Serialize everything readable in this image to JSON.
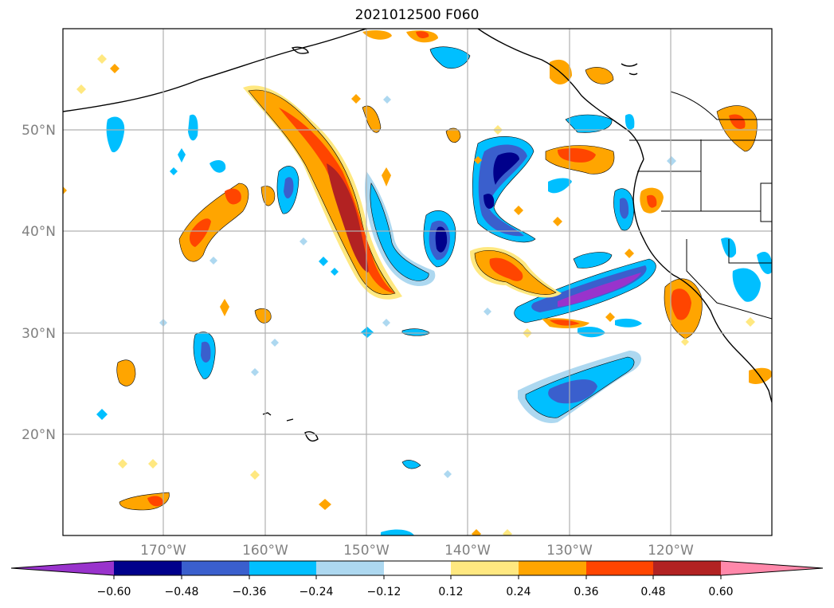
{
  "title": "2021012500 F060",
  "map": {
    "projection": "plate-carree",
    "lon_range": [
      -180,
      -110
    ],
    "lat_range": [
      10,
      60
    ],
    "grid": true,
    "lat_labels": [
      "20°N",
      "30°N",
      "40°N",
      "50°N"
    ],
    "lon_labels": [
      "170°W",
      "160°W",
      "150°W",
      "140°W",
      "130°W",
      "120°W"
    ],
    "label_color": "#808080"
  },
  "colorbar": {
    "levels": [
      "−0.60",
      "−0.48",
      "−0.36",
      "−0.24",
      "−0.12",
      "0.12",
      "0.24",
      "0.36",
      "0.48",
      "0.60"
    ],
    "colors": [
      "#9933cc",
      "#00008b",
      "#3a5fcd",
      "#00bfff",
      "#add8f0",
      "#ffffff",
      "#ffe880",
      "#ffa500",
      "#ff4500",
      "#b22222",
      "#ff88aa"
    ],
    "extend": "both"
  }
}
